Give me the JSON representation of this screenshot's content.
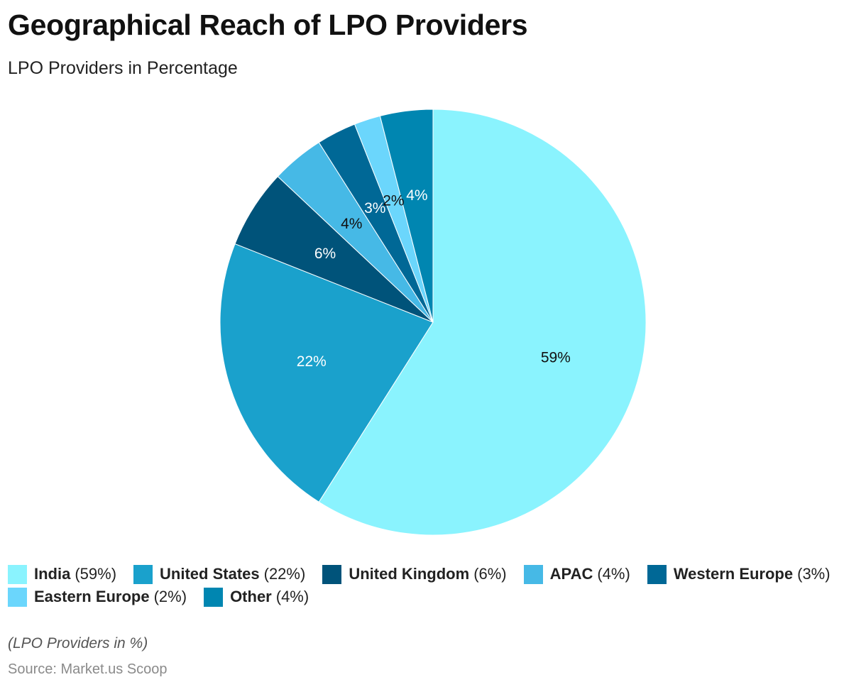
{
  "chart_data": {
    "type": "pie",
    "title": "Geographical Reach of LPO Providers",
    "subtitle": "LPO Providers in Percentage",
    "categories": [
      "India",
      "United States",
      "United Kingdom",
      "APAC",
      "Western Europe",
      "Eastern Europe",
      "Other"
    ],
    "values": [
      59,
      22,
      6,
      4,
      3,
      2,
      4
    ],
    "value_labels": [
      "59%",
      "22%",
      "6%",
      "4%",
      "3%",
      "2%",
      "4%"
    ],
    "legend_values": [
      "(59%)",
      "(22%)",
      "(6%)",
      "(4%)",
      "(3%)",
      "(2%)",
      "(4%)"
    ],
    "colors": [
      "#8af3fe",
      "#1aa1cc",
      "#00537a",
      "#46b9e6",
      "#006896",
      "#6bd6fc",
      "#0086b1"
    ],
    "label_colors": [
      "#111111",
      "#ffffff",
      "#ffffff",
      "#111111",
      "#ffffff",
      "#111111",
      "#ffffff"
    ],
    "start_angle_deg": 0,
    "direction": "clockwise",
    "legend_position": "bottom-left"
  },
  "footer": {
    "note": "(LPO Providers in %)",
    "source": "Source: Market.us Scoop"
  }
}
